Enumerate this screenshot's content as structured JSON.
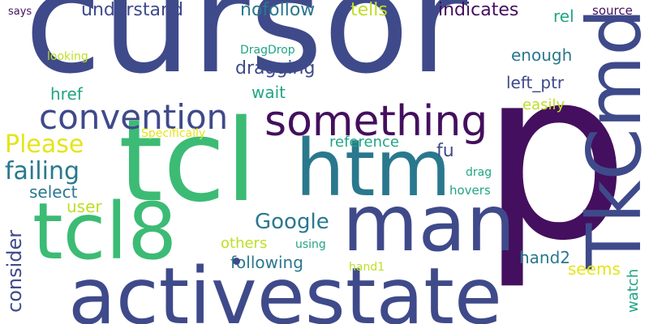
{
  "word_cloud": {
    "words": [
      {
        "key": "cursor",
        "text": "cursor",
        "color": "#3f4a8a"
      },
      {
        "key": "p",
        "text": "p",
        "color": "#440f5e"
      },
      {
        "key": "activestate",
        "text": "activestate",
        "color": "#3f4a8a"
      },
      {
        "key": "tcl",
        "text": "tcl",
        "color": "#3cbb75"
      },
      {
        "key": "tcl8",
        "text": "tcl8",
        "color": "#3cbb75"
      },
      {
        "key": "htm",
        "text": "htm",
        "color": "#2a788e"
      },
      {
        "key": "man",
        "text": "man",
        "color": "#3f4a8a"
      },
      {
        "key": "tkcmd",
        "text": "TkCmd",
        "color": "#3f4a8a"
      },
      {
        "key": "something",
        "text": "something",
        "color": "#440f5e"
      },
      {
        "key": "convention",
        "text": "convention",
        "color": "#3f4a8a"
      },
      {
        "key": "please",
        "text": "Please",
        "color": "#e6e419"
      },
      {
        "key": "failing",
        "text": "failing",
        "color": "#2a788e"
      },
      {
        "key": "google",
        "text": "Google",
        "color": "#2a788e"
      },
      {
        "key": "consider",
        "text": "consider",
        "color": "#3f4a8a"
      },
      {
        "key": "select",
        "text": "select",
        "color": "#2a788e"
      },
      {
        "key": "user",
        "text": "user",
        "color": "#bddf26"
      },
      {
        "key": "href",
        "text": "href",
        "color": "#21a585"
      },
      {
        "key": "understand",
        "text": "understand",
        "color": "#3f4a8a"
      },
      {
        "key": "nofollow",
        "text": "nofollow",
        "color": "#2a788e"
      },
      {
        "key": "tells",
        "text": "tells",
        "color": "#bddf26"
      },
      {
        "key": "indicates",
        "text": "indicates",
        "color": "#440f5e"
      },
      {
        "key": "rel",
        "text": "rel",
        "color": "#21a585"
      },
      {
        "key": "source",
        "text": "source",
        "color": "#440f5e"
      },
      {
        "key": "says",
        "text": "says",
        "color": "#440f5e"
      },
      {
        "key": "looking",
        "text": "looking",
        "color": "#bddf26"
      },
      {
        "key": "dragdrop",
        "text": "DragDrop",
        "color": "#21a585"
      },
      {
        "key": "dragging",
        "text": "dragging",
        "color": "#3f4a8a"
      },
      {
        "key": "enough",
        "text": "enough",
        "color": "#2a788e"
      },
      {
        "key": "wait",
        "text": "wait",
        "color": "#21a585"
      },
      {
        "key": "left_ptr",
        "text": "left_ptr",
        "color": "#3f4a8a"
      },
      {
        "key": "easily",
        "text": "easily",
        "color": "#bddf26"
      },
      {
        "key": "specifically",
        "text": "Specifically",
        "color": "#e6e419"
      },
      {
        "key": "reference",
        "text": "reference",
        "color": "#21a585"
      },
      {
        "key": "fu",
        "text": "fu",
        "color": "#3f4a8a"
      },
      {
        "key": "drag",
        "text": "drag",
        "color": "#21a585"
      },
      {
        "key": "hovers",
        "text": "hovers",
        "color": "#21a585"
      },
      {
        "key": "others",
        "text": "others",
        "color": "#bddf26"
      },
      {
        "key": "using",
        "text": "using",
        "color": "#21a585"
      },
      {
        "key": "following",
        "text": "following",
        "color": "#2a788e"
      },
      {
        "key": "hand2",
        "text": "hand2",
        "color": "#2a788e"
      },
      {
        "key": "hand1",
        "text": "hand1",
        "color": "#bddf26"
      },
      {
        "key": "seems",
        "text": "seems",
        "color": "#e6e419"
      },
      {
        "key": "watch",
        "text": "watch",
        "color": "#21a585"
      }
    ]
  }
}
